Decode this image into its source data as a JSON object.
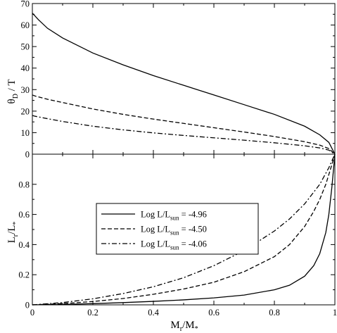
{
  "chart_data": [
    {
      "type": "line",
      "panel": "top",
      "ylabel": {
        "symbol": "θ",
        "sub": "D",
        "rest": " / T"
      },
      "xlim": [
        0,
        1
      ],
      "ylim": [
        0,
        70
      ],
      "x_ticks": [
        0,
        0.2,
        0.4,
        0.6,
        0.8,
        1
      ],
      "y_ticks": [
        "0",
        "10",
        "20",
        "30",
        "40",
        "50",
        "60",
        "70"
      ],
      "grid": false,
      "series": [
        {
          "name": "Log L/Lsun = -4.96",
          "style": "solid",
          "x": [
            0,
            0.005,
            0.02,
            0.05,
            0.1,
            0.2,
            0.3,
            0.4,
            0.5,
            0.6,
            0.7,
            0.8,
            0.9,
            0.95,
            0.98,
            1.0
          ],
          "y": [
            65.5,
            64.8,
            62.5,
            58.5,
            54.0,
            47.0,
            41.5,
            36.5,
            32.0,
            27.5,
            23.0,
            18.5,
            13.0,
            9.0,
            5.5,
            0
          ]
        },
        {
          "name": "Log L/Lsun = -4.50",
          "style": "dashed",
          "x": [
            0,
            0.01,
            0.05,
            0.1,
            0.2,
            0.3,
            0.4,
            0.5,
            0.6,
            0.7,
            0.8,
            0.9,
            0.95,
            0.98,
            1.0
          ],
          "y": [
            27.5,
            27.0,
            25.5,
            24.0,
            21.0,
            18.5,
            16.3,
            14.3,
            12.3,
            10.3,
            8.2,
            5.8,
            4.2,
            2.6,
            0
          ]
        },
        {
          "name": "Log L/Lsun = -4.06",
          "style": "dashdot",
          "x": [
            0,
            0.01,
            0.05,
            0.1,
            0.2,
            0.3,
            0.4,
            0.5,
            0.6,
            0.7,
            0.8,
            0.9,
            0.95,
            0.98,
            1.0
          ],
          "y": [
            18.0,
            17.6,
            16.5,
            15.2,
            13.0,
            11.3,
            9.9,
            8.7,
            7.6,
            6.5,
            5.3,
            3.9,
            2.9,
            1.9,
            0
          ]
        }
      ]
    },
    {
      "type": "line",
      "panel": "bottom",
      "xlabel": {
        "main": "M",
        "sub": "r",
        "rest": "/M",
        "sub2": "*"
      },
      "ylabel": {
        "main": "L",
        "sub": "r",
        "rest": "/L",
        "sub2": "*"
      },
      "xlim": [
        0,
        1
      ],
      "ylim": [
        0,
        1
      ],
      "x_ticks": [
        "0",
        "0.2",
        "0.4",
        "0.6",
        "0.8",
        "1"
      ],
      "y_ticks": [
        "0",
        "0.2",
        "0.4",
        "0.6",
        "0.8"
      ],
      "grid": false,
      "legend": {
        "position": "center-left",
        "entries": [
          {
            "style": "solid",
            "prefix": "Log L/L",
            "sub": "sun",
            "suffix": " = -4.96"
          },
          {
            "style": "dashed",
            "prefix": "Log L/L",
            "sub": "sun",
            "suffix": " = -4.50"
          },
          {
            "style": "dashdot",
            "prefix": "Log L/L",
            "sub": "sun",
            "suffix": " = -4.06"
          }
        ]
      },
      "series": [
        {
          "name": "Log L/Lsun = -4.96",
          "style": "solid",
          "x": [
            0,
            0.1,
            0.2,
            0.3,
            0.4,
            0.5,
            0.6,
            0.7,
            0.8,
            0.85,
            0.9,
            0.93,
            0.95,
            0.97,
            0.98,
            0.99,
            1.0
          ],
          "y": [
            0,
            0.003,
            0.008,
            0.015,
            0.023,
            0.033,
            0.046,
            0.065,
            0.1,
            0.13,
            0.19,
            0.26,
            0.34,
            0.48,
            0.6,
            0.78,
            1.0
          ]
        },
        {
          "name": "Log L/Lsun = -4.50",
          "style": "dashed",
          "x": [
            0,
            0.1,
            0.2,
            0.3,
            0.4,
            0.5,
            0.6,
            0.7,
            0.8,
            0.85,
            0.9,
            0.93,
            0.95,
            0.97,
            0.99,
            1.0
          ],
          "y": [
            0,
            0.008,
            0.022,
            0.042,
            0.07,
            0.105,
            0.15,
            0.22,
            0.32,
            0.4,
            0.52,
            0.62,
            0.7,
            0.8,
            0.93,
            1.0
          ]
        },
        {
          "name": "Log L/Lsun = -4.06",
          "style": "dashdot",
          "x": [
            0,
            0.1,
            0.2,
            0.3,
            0.4,
            0.5,
            0.6,
            0.7,
            0.8,
            0.85,
            0.9,
            0.95,
            0.98,
            1.0
          ],
          "y": [
            0,
            0.015,
            0.04,
            0.075,
            0.12,
            0.18,
            0.26,
            0.36,
            0.49,
            0.57,
            0.67,
            0.8,
            0.91,
            1.0
          ]
        }
      ]
    }
  ]
}
